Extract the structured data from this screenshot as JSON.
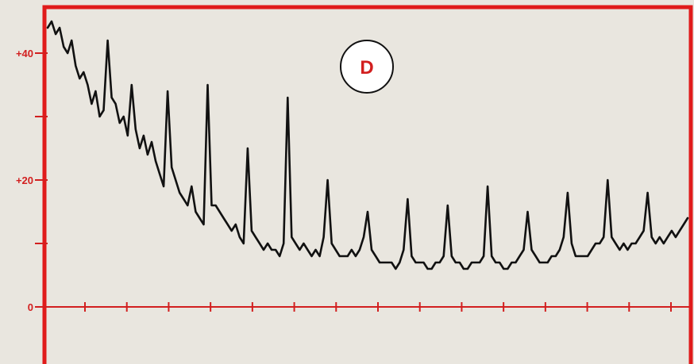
{
  "chart_data": {
    "type": "line",
    "title": "",
    "xlabel": "",
    "ylabel": "",
    "ylim": [
      -9,
      47
    ],
    "yticks": [
      0,
      10,
      20,
      30,
      40
    ],
    "ytick_labels": [
      {
        "value": 40,
        "text": "+40"
      },
      {
        "value": 20,
        "text": "+20"
      },
      {
        "value": 0,
        "text": "0"
      }
    ],
    "grid": false,
    "panel_label": "D",
    "colors": {
      "frame": "#e01b1b",
      "axis": "#d21f1f",
      "line": "#111111",
      "background": "#e9e6df"
    },
    "x": [
      0,
      1,
      2,
      3,
      4,
      5,
      6,
      7,
      8,
      9,
      10,
      11,
      12,
      13,
      14,
      15,
      16,
      17,
      18,
      19,
      20,
      21,
      22,
      23,
      24,
      25,
      26,
      27,
      28,
      29,
      30,
      31,
      32,
      33,
      34,
      35,
      36,
      37,
      38,
      39,
      40,
      41,
      42,
      43,
      44,
      45,
      46,
      47,
      48,
      49,
      50,
      51,
      52,
      53,
      54,
      55,
      56,
      57,
      58,
      59,
      60,
      61,
      62,
      63,
      64,
      65,
      66,
      67,
      68,
      69,
      70,
      71,
      72,
      73,
      74,
      75,
      76,
      77,
      78,
      79,
      80,
      81,
      82,
      83,
      84,
      85,
      86,
      87,
      88,
      89,
      90,
      91,
      92,
      93,
      94,
      95,
      96,
      97,
      98,
      99,
      100,
      101,
      102,
      103,
      104,
      105,
      106,
      107,
      108,
      109,
      110,
      111,
      112,
      113,
      114,
      115,
      116,
      117,
      118,
      119,
      120,
      121,
      122,
      123,
      124,
      125,
      126,
      127,
      128,
      129,
      130,
      131,
      132,
      133,
      134,
      135,
      136,
      137,
      138,
      139,
      140,
      141,
      142,
      143,
      144,
      145,
      146,
      147,
      148,
      149,
      150,
      151,
      152,
      153,
      154,
      155,
      156,
      157,
      158,
      159,
      160
    ],
    "series": [
      {
        "values": [
          44,
          45,
          43,
          44,
          41,
          40,
          42,
          38,
          36,
          37,
          35,
          32,
          34,
          30,
          31,
          42,
          33,
          32,
          29,
          30,
          27,
          35,
          28,
          25,
          27,
          24,
          26,
          23,
          21,
          19,
          34,
          22,
          20,
          18,
          17,
          16,
          19,
          15,
          14,
          13,
          35,
          16,
          16,
          15,
          14,
          13,
          12,
          13,
          11,
          10,
          25,
          12,
          11,
          10,
          9,
          10,
          9,
          9,
          8,
          10,
          33,
          11,
          10,
          9,
          10,
          9,
          8,
          9,
          8,
          11,
          20,
          10,
          9,
          8,
          8,
          8,
          9,
          8,
          9,
          11,
          15,
          9,
          8,
          7,
          7,
          7,
          7,
          6,
          7,
          9,
          17,
          8,
          7,
          7,
          7,
          6,
          6,
          7,
          7,
          8,
          16,
          8,
          7,
          7,
          6,
          6,
          7,
          7,
          7,
          8,
          19,
          8,
          7,
          7,
          6,
          6,
          7,
          7,
          8,
          9,
          15,
          9,
          8,
          7,
          7,
          7,
          8,
          8,
          9,
          11,
          18,
          10,
          8,
          8,
          8,
          8,
          9,
          10,
          10,
          11,
          20,
          11,
          10,
          9,
          10,
          9,
          10,
          10,
          11,
          12,
          18,
          11,
          10,
          11,
          10,
          11,
          12,
          11,
          12,
          13,
          14
        ]
      }
    ]
  }
}
